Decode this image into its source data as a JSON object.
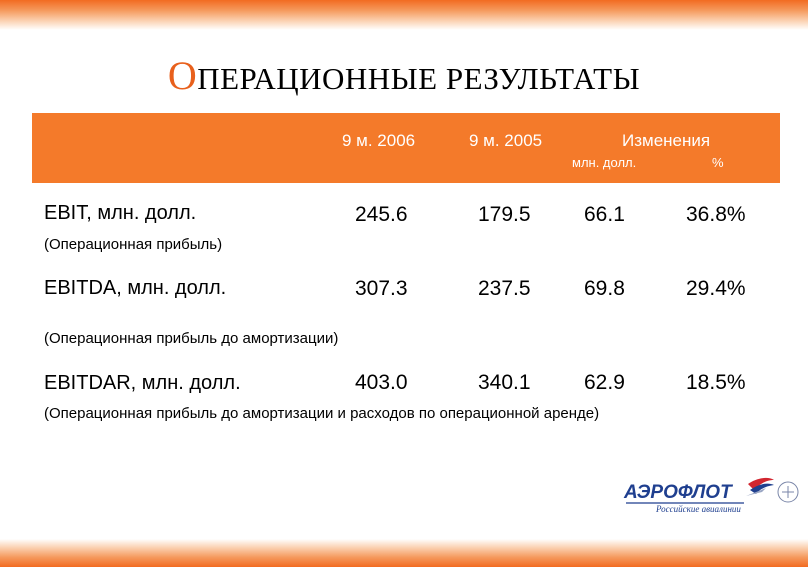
{
  "title": {
    "first_letter": "О",
    "rest": "ПЕРАЦИОННЫЕ РЕЗУЛЬТАТЫ"
  },
  "header": {
    "col1": "9 м. 2006",
    "col2": "9 м. 2005",
    "col3": "Изменения",
    "sub1": "млн. долл.",
    "sub2": "%"
  },
  "rows": [
    {
      "label": "EBIT, млн. долл.",
      "sub": "(Операционная прибыль)",
      "v2006": "245.6",
      "v2005": "179.5",
      "abs": "66.1",
      "pct": "36.8%"
    },
    {
      "label": "EBITDA, млн. долл.",
      "sub": "(Операционная прибыль до амортизации)",
      "v2006": "307.3",
      "v2005": "237.5",
      "abs": "69.8",
      "pct": "29.4%"
    },
    {
      "label": "EBITDAR, млн. долл.",
      "sub": "(Операционная прибыль до амортизации и расходов по операционной аренде)",
      "v2006": "403.0",
      "v2005": "340.1",
      "abs": "62.9",
      "pct": "18.5%"
    }
  ],
  "logo": {
    "name": "АЭРОФЛОТ",
    "tagline": "Российские авиалинии",
    "brand_colors": [
      "#1f3f8f",
      "#d22630"
    ]
  },
  "colors": {
    "accent": "#f47a2a",
    "title_accent": "#e8601c"
  }
}
